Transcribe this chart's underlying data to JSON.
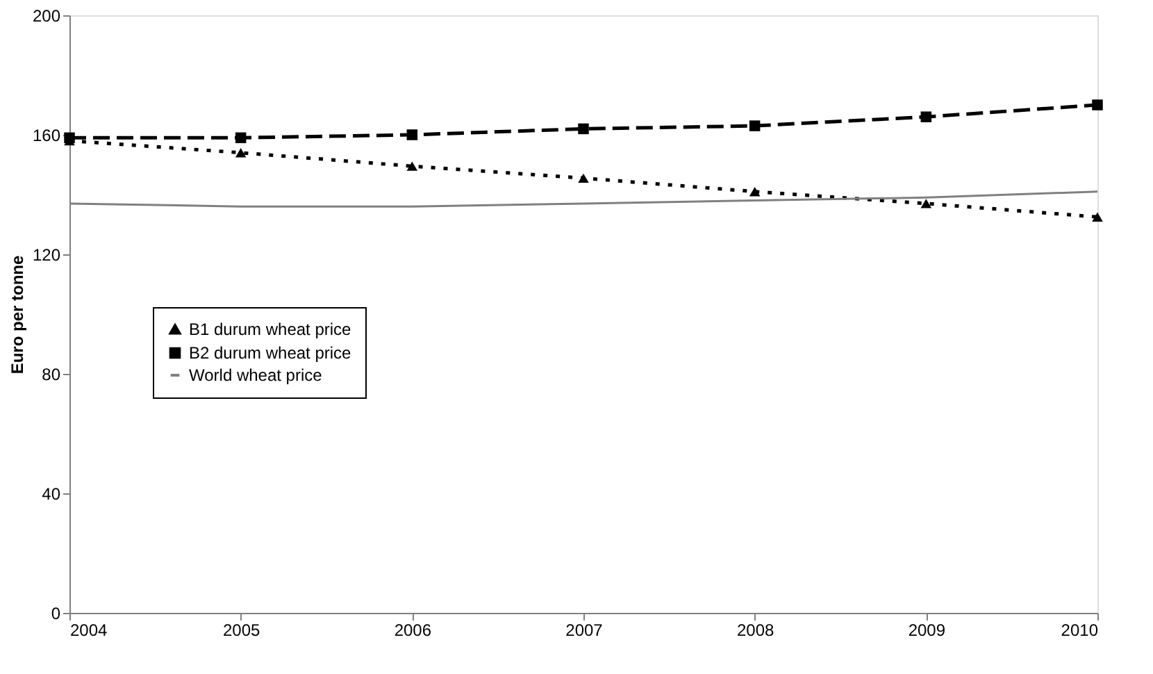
{
  "chart_data": {
    "type": "line",
    "ylabel": "Euro per tonne",
    "x": [
      2004,
      2005,
      2006,
      2007,
      2008,
      2009,
      2010
    ],
    "xlim": [
      2004,
      2010
    ],
    "xticks": [
      2004,
      2005,
      2006,
      2007,
      2008,
      2009,
      2010
    ],
    "ylim": [
      0,
      200
    ],
    "yticks": [
      0,
      40,
      80,
      120,
      160,
      200
    ],
    "grid": false,
    "legend": "left",
    "series": [
      {
        "name": "B1 durum wheat price",
        "color": "#000000",
        "values": [
          158,
          154,
          149.5,
          145.5,
          141,
          137,
          132.5
        ],
        "marker": "triangle",
        "line_style": "dotted"
      },
      {
        "name": "B2 durum wheat price",
        "color": "#000000",
        "values": [
          159,
          159,
          160,
          162,
          163,
          166,
          170
        ],
        "marker": "square",
        "line_style": "dashed"
      },
      {
        "name": "World wheat price",
        "color": "#808080",
        "values": [
          137,
          136,
          136,
          137,
          138,
          139,
          141
        ],
        "marker": "none",
        "line_style": "solid"
      }
    ]
  }
}
